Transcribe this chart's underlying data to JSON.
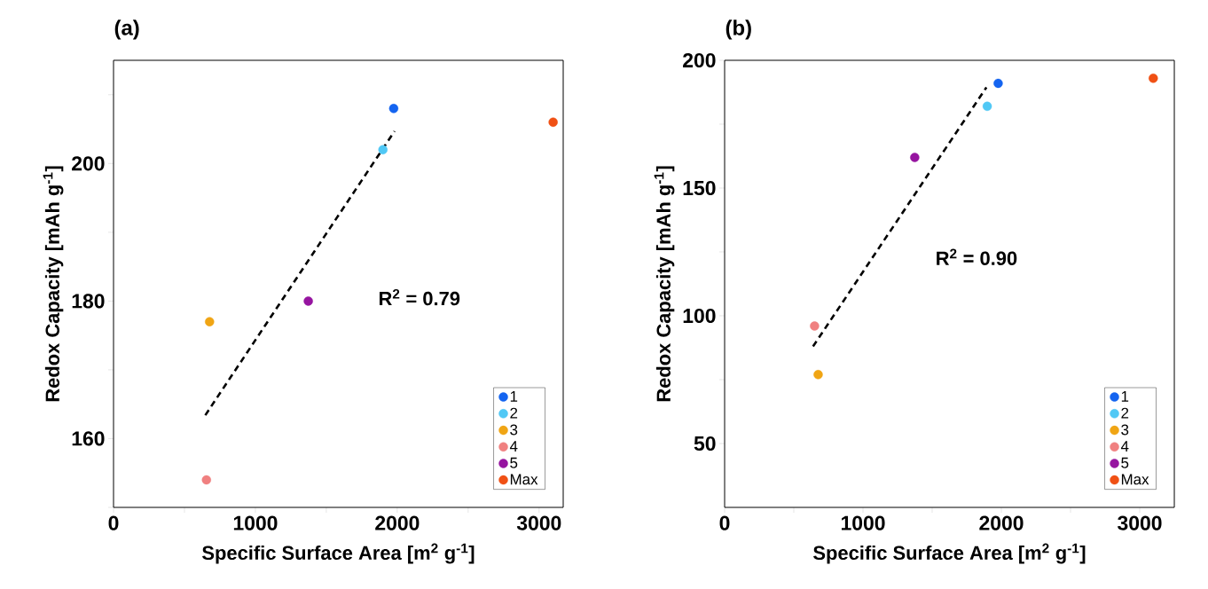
{
  "chart_data": [
    {
      "type": "scatter",
      "title": "(a)",
      "xlabel": "Specific Surface Area [m$^{2}$ g$^{-1}$]",
      "ylabel": "Redox Capacity [mAh g$^{-1}$]",
      "xlim": [
        0,
        3170
      ],
      "ylim": [
        150,
        215
      ],
      "xticks": [
        0,
        {
          "value": 500,
          "label": null
        },
        1000,
        {
          "value": 1500,
          "label": null
        },
        2000,
        {
          "value": 2500,
          "label": null
        },
        3000
      ],
      "yticks": [
        {
          "value": 150,
          "label": null
        },
        160,
        {
          "value": 170,
          "label": null
        },
        180,
        {
          "value": 190,
          "label": null
        },
        200,
        {
          "value": 210,
          "label": null
        }
      ],
      "marker": "circle",
      "legend": "bottom right",
      "annotations": [
        "R$^{2}$ = 0.79"
      ],
      "series": [
        {
          "name": "1",
          "color": "#1464f0",
          "x": [
            1975
          ],
          "values": [
            208
          ]
        },
        {
          "name": "2",
          "color": "#50c8f5",
          "x": [
            1899
          ],
          "values": [
            202
          ]
        },
        {
          "name": "3",
          "color": "#f0a514",
          "x": [
            677
          ],
          "values": [
            177
          ]
        },
        {
          "name": "4",
          "color": "#f08080",
          "x": [
            655
          ],
          "values": [
            154
          ]
        },
        {
          "name": "5",
          "color": "#9614a0",
          "x": [
            1373
          ],
          "values": [
            180
          ]
        },
        {
          "name": "Max",
          "color": "#f05014",
          "x": [
            3099
          ],
          "values": [
            206
          ]
        },
        {
          "type": "line",
          "color": "#000000",
          "line_style": "dashed",
          "marker": "none",
          "x": [
            647,
            1981
          ],
          "values": [
            163.4,
            204.7
          ]
        }
      ]
    },
    {
      "type": "scatter",
      "title": "(b)",
      "xlabel": "Specific Surface Area [m$^{2}$ g$^{-1}$]",
      "ylabel": "Redox Capacity [mAh g$^{-1}$]",
      "xlim": [
        0,
        3250
      ],
      "ylim": [
        25,
        200
      ],
      "xticks": [
        0,
        {
          "value": 500,
          "label": null
        },
        1000,
        {
          "value": 1500,
          "label": null
        },
        2000,
        {
          "value": 2500,
          "label": null
        },
        3000
      ],
      "yticks": [
        50,
        {
          "value": 75,
          "label": null
        },
        100,
        {
          "value": 125,
          "label": null
        },
        150,
        {
          "value": 175,
          "label": null
        },
        200
      ],
      "marker": "circle",
      "legend": "bottom right",
      "annotations": [
        "R$^{2}$ = 0.90"
      ],
      "series": [
        {
          "name": "1",
          "color": "#1464f0",
          "x": [
            1977
          ],
          "values": [
            191
          ]
        },
        {
          "name": "2",
          "color": "#50c8f5",
          "x": [
            1898
          ],
          "values": [
            182
          ]
        },
        {
          "name": "3",
          "color": "#f0a514",
          "x": [
            676
          ],
          "values": [
            77
          ]
        },
        {
          "name": "4",
          "color": "#f08080",
          "x": [
            650
          ],
          "values": [
            96
          ]
        },
        {
          "name": "5",
          "color": "#9614a0",
          "x": [
            1374
          ],
          "values": [
            162
          ]
        },
        {
          "name": "Max",
          "color": "#f05014",
          "x": [
            3098
          ],
          "values": [
            193
          ]
        },
        {
          "type": "line",
          "color": "#000000",
          "line_style": "dashed",
          "marker": "none",
          "x": [
            639,
            1892
          ],
          "values": [
            88,
            189.4
          ]
        }
      ]
    }
  ]
}
